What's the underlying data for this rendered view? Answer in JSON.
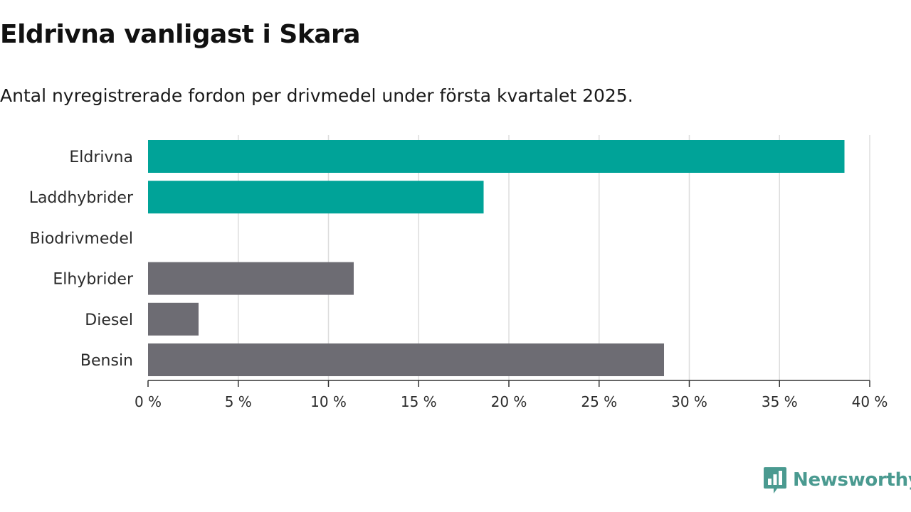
{
  "title": "Eldrivna vanligast i Skara",
  "subtitle": "Antal nyregistrerade fordon per drivmedel under första kvartalet 2025.",
  "brand": {
    "name": "Newsworthy",
    "icon": "newsworthy-logo-icon"
  },
  "colors": {
    "highlight": "#00a398",
    "default": "#6d6c73",
    "grid": "#dddddd",
    "axis": "#333333"
  },
  "chart_data": {
    "type": "bar",
    "orientation": "horizontal",
    "categories": [
      "Eldrivna",
      "Laddhybrider",
      "Biodrivmedel",
      "Elhybrider",
      "Diesel",
      "Bensin"
    ],
    "values": [
      38.6,
      18.6,
      0,
      11.4,
      2.8,
      28.6
    ],
    "highlighted": [
      true,
      true,
      true,
      false,
      false,
      false
    ],
    "xlim": [
      0,
      40
    ],
    "xticks": [
      0,
      5,
      10,
      15,
      20,
      25,
      30,
      35,
      40
    ],
    "xtick_labels": [
      "0 %",
      "5 %",
      "10 %",
      "15 %",
      "20 %",
      "25 %",
      "30 %",
      "35 %",
      "40 %"
    ],
    "grid": "vertical",
    "legend": "none"
  }
}
